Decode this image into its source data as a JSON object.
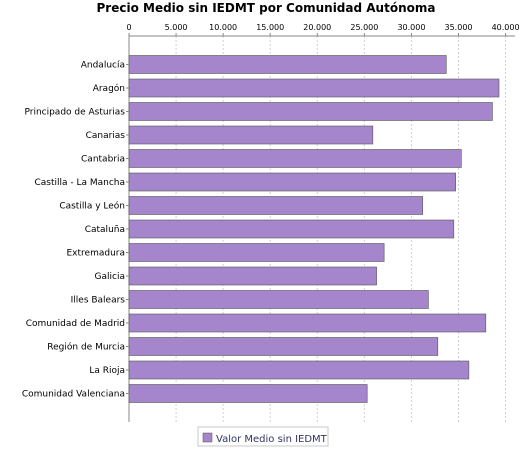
{
  "chart_data": {
    "type": "bar",
    "orientation": "horizontal",
    "title": "Precio Medio sin IEDMT por Comunidad Autónoma",
    "categories": [
      "Andalucía",
      "Aragón",
      "Principado de Asturias",
      "Canarias",
      "Cantabria",
      "Castilla - La Mancha",
      "Castilla y León",
      "Cataluña",
      "Extremadura",
      "Galicia",
      "Illes Balears",
      "Comunidad de Madrid",
      "Región de Murcia",
      "La Rioja",
      "Comunidad Valenciana"
    ],
    "series": [
      {
        "name": "Valor Medio sin IEDMT",
        "color": "#a585cc",
        "values": [
          33700,
          39300,
          38600,
          25900,
          35300,
          34700,
          31200,
          34500,
          27100,
          26300,
          31800,
          37900,
          32800,
          36100,
          25300
        ]
      }
    ],
    "xlim": [
      0,
      41000
    ],
    "xticks": [
      0,
      5000,
      10000,
      15000,
      20000,
      25000,
      30000,
      35000,
      40000
    ],
    "xtick_labels": [
      "0",
      "5.000",
      "10.000",
      "15.000",
      "20.000",
      "25.000",
      "30.000",
      "35.000",
      "40.000"
    ],
    "axis_position": "top",
    "grid": true,
    "legend": "bottom"
  }
}
